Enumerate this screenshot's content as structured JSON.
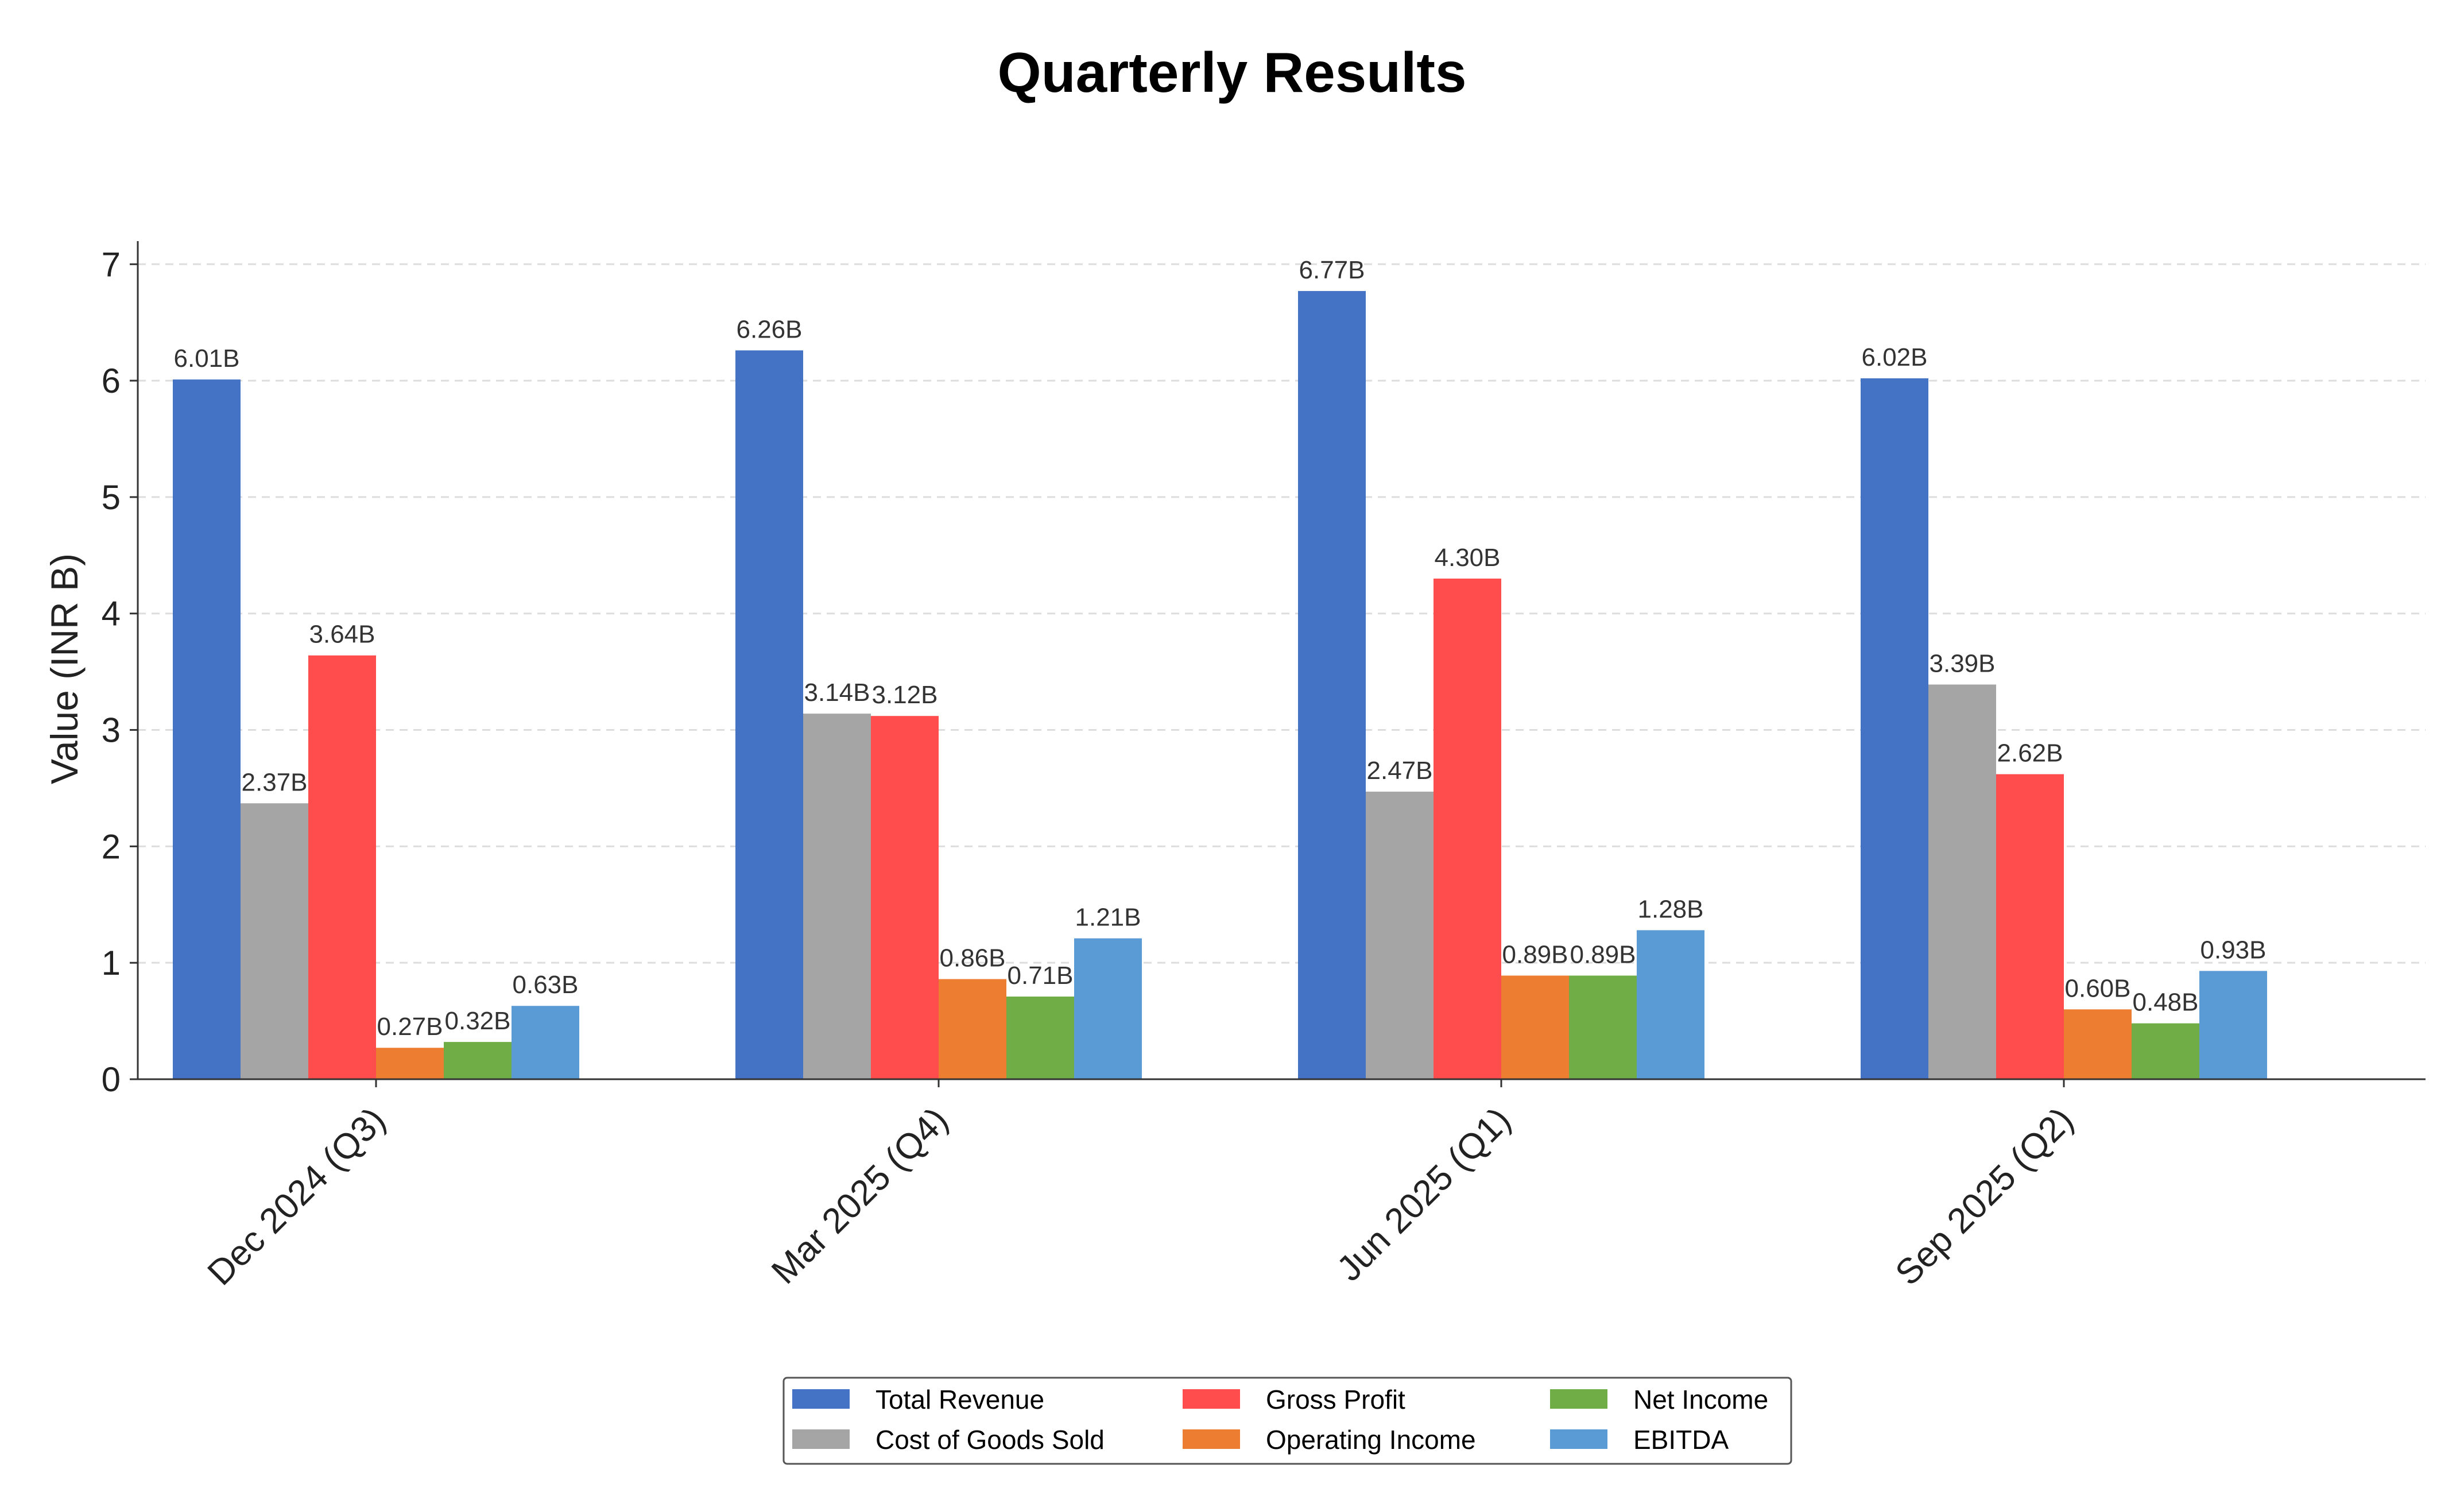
{
  "chart_data": {
    "type": "bar",
    "title": "Quarterly Results",
    "xlabel": "",
    "ylabel": "Value (INR B)",
    "ylim": [
      0,
      7.1
    ],
    "yticks": [
      "0",
      "1",
      "2",
      "3",
      "4",
      "5",
      "6",
      "7"
    ],
    "grid": "y dashed",
    "legend_position": "bottom-center",
    "categories": [
      "Dec 2024 (Q3)",
      "Mar 2025 (Q4)",
      "Jun 2025 (Q1)",
      "Sep 2025 (Q2)"
    ],
    "series": [
      {
        "name": "Total Revenue",
        "color": "#4472C4",
        "values": [
          6.01,
          6.26,
          6.77,
          6.02
        ],
        "labels": [
          "6.01B",
          "6.26B",
          "6.77B",
          "6.02B"
        ]
      },
      {
        "name": "Cost of Goods Sold",
        "color": "#A5A5A5",
        "values": [
          2.37,
          3.14,
          2.47,
          3.39
        ],
        "labels": [
          "2.37B",
          "3.14B",
          "2.47B",
          "3.39B"
        ]
      },
      {
        "name": "Gross Profit",
        "color": "#FF4C4C",
        "values": [
          3.64,
          3.12,
          4.3,
          2.62
        ],
        "labels": [
          "3.64B",
          "3.12B",
          "4.30B",
          "2.62B"
        ]
      },
      {
        "name": "Operating Income",
        "color": "#ED7D31",
        "values": [
          0.27,
          0.86,
          0.89,
          0.6
        ],
        "labels": [
          "0.27B",
          "0.86B",
          "0.89B",
          "0.60B"
        ]
      },
      {
        "name": "Net Income",
        "color": "#70AD47",
        "values": [
          0.32,
          0.71,
          0.89,
          0.48
        ],
        "labels": [
          "0.32B",
          "0.71B",
          "0.89B",
          "0.48B"
        ]
      },
      {
        "name": "EBITDA",
        "color": "#5B9BD5",
        "values": [
          0.63,
          1.21,
          1.28,
          0.93
        ],
        "labels": [
          "0.63B",
          "1.21B",
          "1.28B",
          "0.93B"
        ]
      }
    ]
  }
}
